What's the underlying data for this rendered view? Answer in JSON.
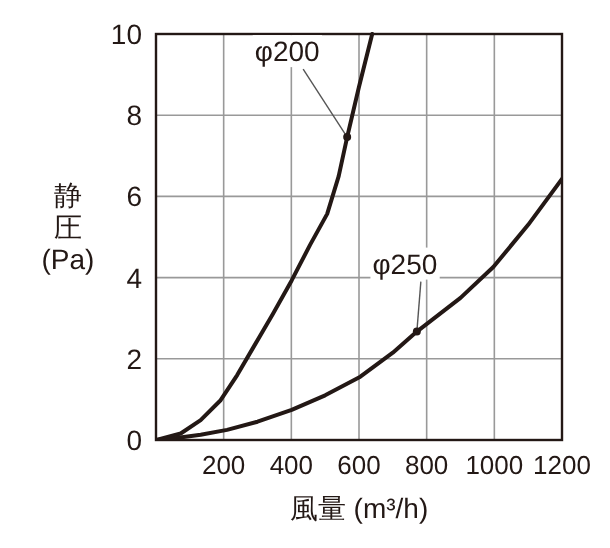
{
  "chart_data": {
    "type": "line",
    "xlabel": "風量 (m³/h)",
    "ylabel": "静圧(Pa)",
    "xlim": [
      0,
      1200
    ],
    "ylim": [
      0,
      10
    ],
    "xticks": [
      {
        "value": 0,
        "label": null
      },
      200,
      400,
      600,
      800,
      1000,
      1200
    ],
    "yticks": [
      0,
      2,
      4,
      6,
      8,
      10
    ],
    "grid": true,
    "line_style": "solid",
    "series": [
      {
        "color": "#231815",
        "x": [
          0,
          73,
          132,
          191,
          240,
          289,
          345,
          401,
          455,
          506,
          540,
          565,
          600,
          639
        ],
        "values": [
          0,
          0.16,
          0.49,
          0.98,
          1.6,
          2.3,
          3.1,
          3.93,
          4.8,
          5.57,
          6.5,
          7.46,
          8.7,
          10
        ]
      },
      {
        "color": "#231815",
        "x": [
          0,
          60,
          132,
          210,
          300,
          401,
          500,
          604,
          700,
          771,
          900,
          997,
          1100,
          1200
        ],
        "values": [
          0,
          0.05,
          0.13,
          0.25,
          0.45,
          0.74,
          1.1,
          1.56,
          2.15,
          2.67,
          3.5,
          4.26,
          5.3,
          6.43
        ]
      }
    ],
    "annotations": [
      {
        "text": "φ200",
        "x": 565,
        "y": 7.46
      },
      {
        "text": "φ250",
        "x": 771,
        "y": 2.67
      }
    ]
  }
}
